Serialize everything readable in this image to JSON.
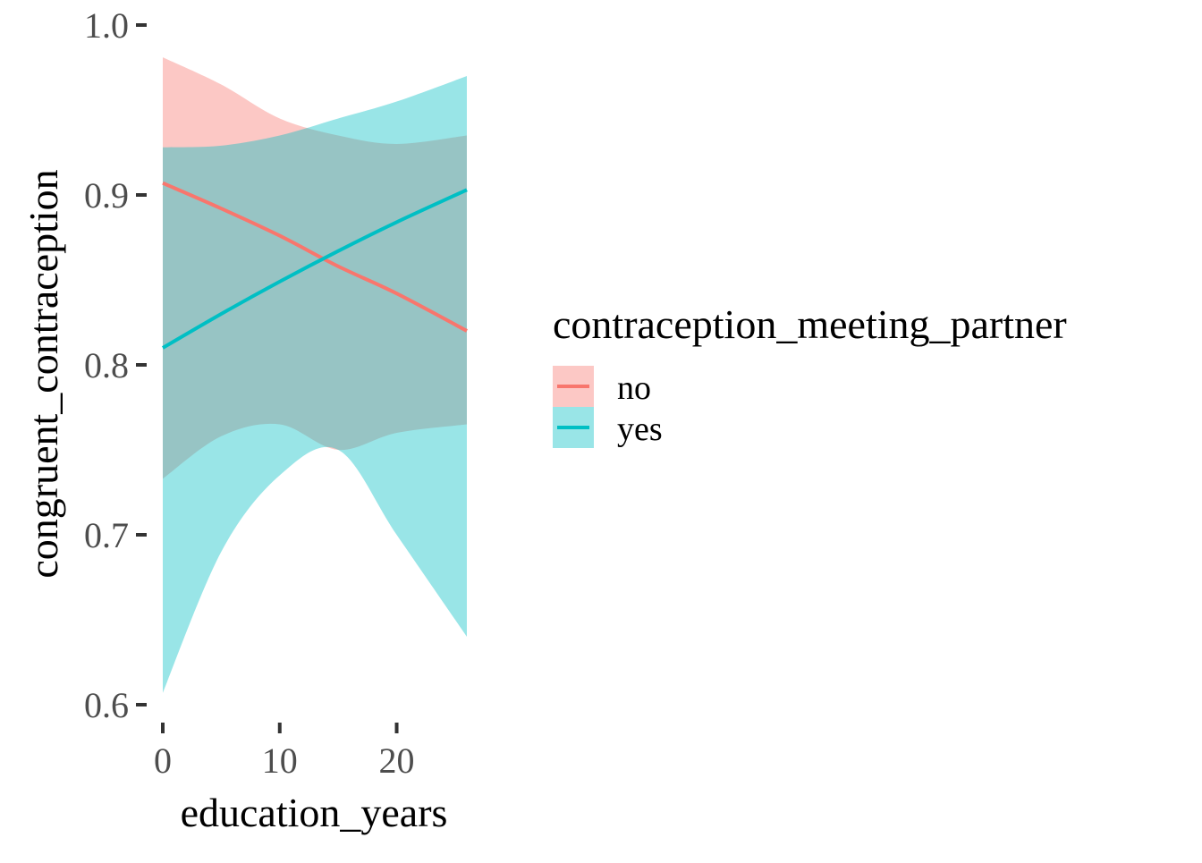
{
  "chart_data": {
    "type": "line",
    "xlabel": "education_years",
    "ylabel": "congruent_contraception",
    "xlim": [
      0,
      26
    ],
    "ylim": [
      0.6,
      1.0
    ],
    "x_ticks": [
      0,
      10,
      20
    ],
    "x_tick_labels": [
      "0",
      "10",
      "20"
    ],
    "y_ticks": [
      0.6,
      0.7,
      0.8,
      0.9,
      1.0
    ],
    "y_tick_labels": [
      "0.6",
      "0.7",
      "0.8",
      "0.9",
      "1.0"
    ],
    "grid": false,
    "legend": {
      "title": "contraception_meeting_partner",
      "position": "right",
      "entries": [
        "no",
        "yes"
      ]
    },
    "series": [
      {
        "name": "no",
        "color": "#F8766D",
        "x": [
          0,
          5,
          10,
          15,
          20,
          26
        ],
        "y": [
          0.907,
          0.892,
          0.876,
          0.858,
          0.842,
          0.82
        ],
        "ci_lower": [
          0.733,
          0.758,
          0.765,
          0.75,
          0.76,
          0.765
        ],
        "ci_upper": [
          0.981,
          0.965,
          0.945,
          0.935,
          0.93,
          0.935
        ]
      },
      {
        "name": "yes",
        "color": "#00BFC4",
        "x": [
          0,
          5,
          10,
          15,
          20,
          26
        ],
        "y": [
          0.81,
          0.83,
          0.849,
          0.867,
          0.884,
          0.903
        ],
        "ci_lower": [
          0.607,
          0.69,
          0.735,
          0.75,
          0.7,
          0.64
        ],
        "ci_upper": [
          0.928,
          0.929,
          0.935,
          0.945,
          0.955,
          0.97
        ]
      }
    ]
  }
}
